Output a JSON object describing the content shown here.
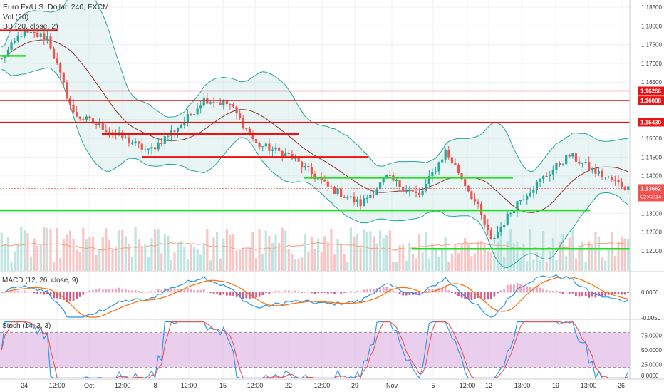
{
  "header": {
    "symbol": "Euro Fx/U.S. Dollar, 240, FXCM",
    "vol": "Vol (20)",
    "bb": "BB (20, close, 2)"
  },
  "panes": {
    "macd_label": "MACD (12, 26, close, 9)",
    "stoch_label": "Stoch (14, 3, 3)"
  },
  "price_axis": [
    "1.18500",
    "1.18000",
    "1.17500",
    "1.17000",
    "1.16500",
    "1.16000",
    "1.15500",
    "1.15000",
    "1.14500",
    "1.14000",
    "1.13500",
    "1.13000",
    "1.12500",
    "1.12000"
  ],
  "price_badges": [
    "1.16266",
    "1.16008",
    "1.15430"
  ],
  "current_price": {
    "value": "1.13662",
    "countdown": "02:43:14"
  },
  "macd_axis": [
    "0.0000",
    "-0.0050"
  ],
  "stoch_axis": [
    "75.0000",
    "50.0000",
    "25.0000",
    "0.0000"
  ],
  "time_axis": [
    "24",
    "12:00",
    "Oct",
    "12:00",
    "8",
    "12:00",
    "15",
    "12:00",
    "22",
    "12:00",
    "29",
    "Nov",
    "5",
    "12:00",
    "12",
    "13:00",
    "19",
    "13:00",
    "26"
  ],
  "colors": {
    "up": "#26a69a",
    "down": "#ef5350",
    "support": "#22dd22",
    "resistance": "#ee1111",
    "bb_fill": "#b2dfdb",
    "stoch_band": "#e1bee7",
    "macd_line": "#2196f3",
    "signal_line": "#ff6d00"
  },
  "chart_data": {
    "type": "line",
    "title": "Euro Fx/U.S. Dollar, 240, FXCM",
    "ylim": [
      1.116,
      1.188
    ],
    "price_path": [
      [
        0,
        1.171
      ],
      [
        6,
        1.178
      ],
      [
        14,
        1.177
      ],
      [
        22,
        1.1565
      ],
      [
        32,
        1.1525
      ],
      [
        45,
        1.1465
      ],
      [
        56,
        1.1545
      ],
      [
        62,
        1.1605
      ],
      [
        70,
        1.159
      ],
      [
        78,
        1.1485
      ],
      [
        88,
        1.1455
      ],
      [
        100,
        1.137
      ],
      [
        110,
        1.1325
      ],
      [
        118,
        1.1395
      ],
      [
        128,
        1.1345
      ],
      [
        136,
        1.1465
      ],
      [
        140,
        1.141
      ],
      [
        146,
        1.1315
      ],
      [
        150,
        1.1225
      ],
      [
        158,
        1.133
      ],
      [
        166,
        1.1395
      ],
      [
        174,
        1.1455
      ],
      [
        182,
        1.141
      ],
      [
        190,
        1.1375
      ],
      [
        192,
        1.1366
      ]
    ],
    "resistance_levels": [
      1.16266,
      1.16008,
      1.1543
    ],
    "support_levels": [
      1.1395,
      1.1308,
      1.1205
    ],
    "macd_ylim": [
      -0.0055,
      0.0035
    ],
    "stoch_ylim": [
      0,
      100
    ],
    "stoch_bands": [
      80,
      20
    ]
  }
}
